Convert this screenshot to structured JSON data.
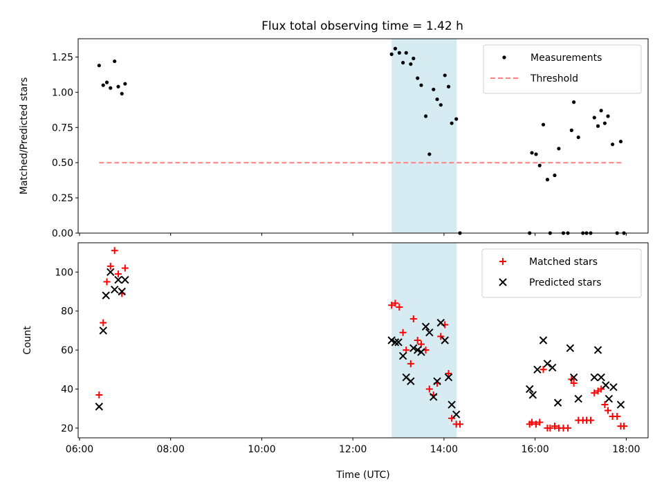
{
  "chart_data": [
    {
      "id": "ratio",
      "type": "scatter",
      "title": "Flux total observing time = 1.42 h",
      "xlabel": "",
      "ylabel": "Matched/Predicted stars",
      "xlim_hours": [
        5.97,
        18.48
      ],
      "ylim": [
        0,
        1.38
      ],
      "yticks": [
        0.0,
        0.25,
        0.5,
        0.75,
        1.0,
        1.25
      ],
      "ytick_labels": [
        "0.00",
        "0.25",
        "0.50",
        "0.75",
        "1.00",
        "1.25"
      ],
      "xticks_hours": [
        6,
        8,
        10,
        12,
        14,
        16,
        18
      ],
      "show_xtick_labels": false,
      "shaded_region_hours": [
        12.85,
        14.28
      ],
      "shaded_color": "#add8e6",
      "legend": {
        "placement": "top-right",
        "entries": [
          "Measurements",
          "Threshold"
        ]
      },
      "series": [
        {
          "name": "Measurements",
          "marker": "dot",
          "color": "#000000",
          "x_hours": [
            6.43,
            6.52,
            6.6,
            6.68,
            6.77,
            6.85,
            6.93,
            7.0,
            12.85,
            12.93,
            13.02,
            13.1,
            13.17,
            13.27,
            13.33,
            13.42,
            13.5,
            13.6,
            13.68,
            13.77,
            13.85,
            13.93,
            14.02,
            14.1,
            14.17,
            14.27,
            14.35,
            15.88,
            15.93,
            16.02,
            16.1,
            16.18,
            16.27,
            16.33,
            16.43,
            16.52,
            16.62,
            16.72,
            16.8,
            16.85,
            16.95,
            17.05,
            17.13,
            17.22,
            17.3,
            17.38,
            17.45,
            17.53,
            17.6,
            17.7,
            17.8,
            17.88,
            17.95
          ],
          "y": [
            1.19,
            1.05,
            1.07,
            1.03,
            1.22,
            1.04,
            0.99,
            1.06,
            1.27,
            1.31,
            1.28,
            1.21,
            1.28,
            1.2,
            1.24,
            1.1,
            1.05,
            0.83,
            0.56,
            1.02,
            0.95,
            0.91,
            1.12,
            1.04,
            0.78,
            0.81,
            0.0,
            0.0,
            0.57,
            0.56,
            0.48,
            0.77,
            0.38,
            0.0,
            0.41,
            0.6,
            0.0,
            0.0,
            0.73,
            0.93,
            0.68,
            0.0,
            0.0,
            0.0,
            0.82,
            0.76,
            0.87,
            0.78,
            0.83,
            0.63,
            0.0,
            0.65,
            0.0
          ]
        },
        {
          "name": "Threshold",
          "marker": "dashed-line",
          "color": "#ff7f7f",
          "x_hours": [
            6.43,
            17.95
          ],
          "y": [
            0.5,
            0.5
          ]
        }
      ]
    },
    {
      "id": "counts",
      "type": "scatter",
      "title": "",
      "xlabel": "Time (UTC)",
      "ylabel": "Count",
      "xlim_hours": [
        5.97,
        18.48
      ],
      "ylim": [
        15,
        115
      ],
      "yticks": [
        20,
        40,
        60,
        80,
        100
      ],
      "ytick_labels": [
        "20",
        "40",
        "60",
        "80",
        "100"
      ],
      "xticks_hours": [
        6,
        8,
        10,
        12,
        14,
        16,
        18
      ],
      "xtick_labels": [
        "06:00",
        "08:00",
        "10:00",
        "12:00",
        "14:00",
        "16:00",
        "18:00"
      ],
      "show_xtick_labels": true,
      "shaded_region_hours": [
        12.85,
        14.28
      ],
      "shaded_color": "#add8e6",
      "legend": {
        "placement": "top-right",
        "entries": [
          "Matched stars",
          "Predicted stars"
        ]
      },
      "series": [
        {
          "name": "Matched stars",
          "marker": "plus",
          "color": "#ff0000",
          "x_hours": [
            6.43,
            6.52,
            6.6,
            6.68,
            6.77,
            6.85,
            6.93,
            7.0,
            12.85,
            12.93,
            13.02,
            13.1,
            13.17,
            13.27,
            13.33,
            13.42,
            13.5,
            13.6,
            13.68,
            13.77,
            13.85,
            13.93,
            14.02,
            14.1,
            14.17,
            14.27,
            14.35,
            15.88,
            15.93,
            16.02,
            16.1,
            16.18,
            16.27,
            16.33,
            16.43,
            16.52,
            16.62,
            16.72,
            16.8,
            16.85,
            16.95,
            17.05,
            17.13,
            17.22,
            17.3,
            17.38,
            17.45,
            17.53,
            17.6,
            17.7,
            17.8,
            17.88,
            17.95
          ],
          "y": [
            37,
            74,
            95,
            103,
            111,
            99,
            89,
            102,
            83,
            84,
            82,
            69,
            60,
            53,
            76,
            65,
            63,
            60,
            40,
            37,
            43,
            67,
            73,
            48,
            25,
            22,
            22,
            22,
            23,
            22,
            23,
            50,
            20,
            20,
            21,
            20,
            20,
            20,
            45,
            43,
            24,
            24,
            24,
            24,
            38,
            39,
            40,
            32,
            29,
            26,
            26,
            21,
            21
          ]
        },
        {
          "name": "Predicted stars",
          "marker": "cross",
          "color": "#000000",
          "x_hours": [
            6.43,
            6.52,
            6.58,
            6.68,
            6.77,
            6.85,
            6.93,
            7.0,
            12.85,
            12.93,
            13.0,
            13.1,
            13.17,
            13.27,
            13.33,
            13.42,
            13.5,
            13.6,
            13.68,
            13.77,
            13.85,
            13.93,
            14.02,
            14.1,
            14.17,
            14.27,
            15.88,
            15.95,
            16.05,
            16.18,
            16.27,
            16.38,
            16.5,
            16.77,
            16.85,
            16.95,
            17.3,
            17.38,
            17.45,
            17.55,
            17.62,
            17.72,
            17.88
          ],
          "y": [
            31,
            70,
            88,
            100,
            91,
            96,
            90,
            96,
            65,
            64,
            64,
            57,
            46,
            44,
            61,
            60,
            59,
            72,
            69,
            36,
            44,
            74,
            65,
            46,
            32,
            27,
            40,
            37,
            50,
            65,
            53,
            51,
            33,
            61,
            46,
            35,
            46,
            60,
            46,
            42,
            35,
            41,
            32
          ]
        }
      ]
    }
  ]
}
